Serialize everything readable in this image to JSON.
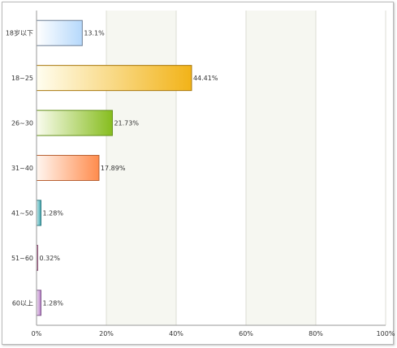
{
  "chart_data": {
    "type": "bar",
    "orientation": "horizontal",
    "categories": [
      "18岁以下",
      "18~25",
      "26~30",
      "31~40",
      "41~50",
      "51~60",
      "60以上"
    ],
    "values": [
      13.1,
      44.41,
      21.73,
      17.89,
      1.28,
      0.32,
      1.28
    ],
    "value_labels": [
      "13.1%",
      "44.41%",
      "21.73%",
      "17.89%",
      "1.28%",
      "0.32%",
      "1.28%"
    ],
    "xlim": [
      0,
      100
    ],
    "x_ticks": [
      "0%",
      "20%",
      "40%",
      "60%",
      "80%",
      "100%"
    ],
    "grid": true,
    "title": "",
    "xlabel": "",
    "ylabel": "",
    "bar_colors": [
      {
        "light": "#ffffff",
        "dark": "#b5d8fb",
        "edge": "#6e7f95"
      },
      {
        "light": "#fffef0",
        "dark": "#f2b318",
        "edge": "#a8780f"
      },
      {
        "light": "#fafcef",
        "dark": "#86bd1e",
        "edge": "#63901a"
      },
      {
        "light": "#fff6f0",
        "dark": "#ff8c4d",
        "edge": "#b86235"
      },
      {
        "light": "#c8eef0",
        "dark": "#3fa2ab",
        "edge": "#2f7b82"
      },
      {
        "light": "#f5e6f0",
        "dark": "#b56a96",
        "edge": "#8a4e72"
      },
      {
        "light": "#f2e2f4",
        "dark": "#b37ac4",
        "edge": "#7f5a8c"
      }
    ]
  }
}
